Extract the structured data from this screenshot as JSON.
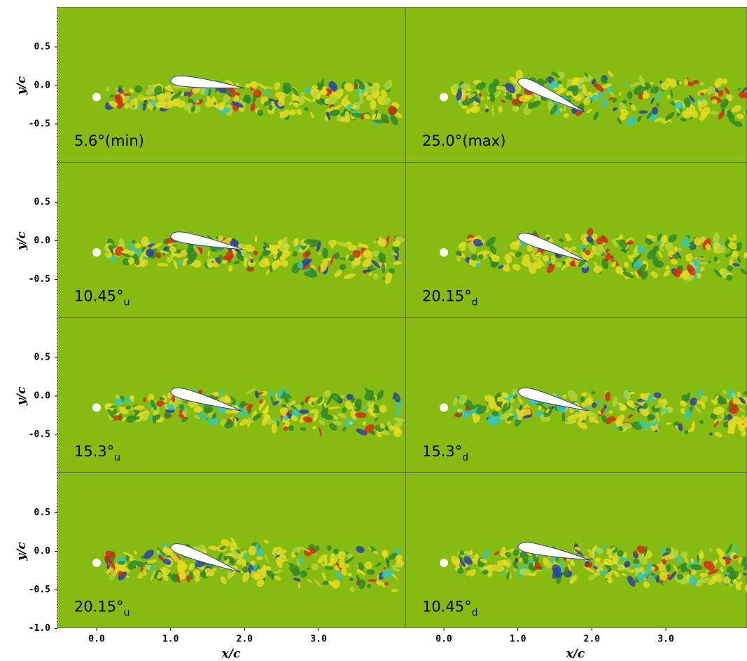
{
  "axes": {
    "y_label": "y/c",
    "x_label": "x/c",
    "yticks": [
      "0.5",
      "0.0",
      "-0.5"
    ],
    "y_bottom_tick": "-1.0",
    "xticks": [
      "0.0",
      "1.0",
      "2.0",
      "3.0"
    ]
  },
  "panels": [
    {
      "label": "5.6°(min)"
    },
    {
      "label": "25.0°(max)"
    },
    {
      "label": "10.45°",
      "sub": "u"
    },
    {
      "label": "20.15°",
      "sub": "d"
    },
    {
      "label": "15.3°",
      "sub": "u"
    },
    {
      "label": "15.3°",
      "sub": "d"
    },
    {
      "label": "20.15°",
      "sub": "u"
    },
    {
      "label": "10.45°",
      "sub": "d"
    }
  ]
}
